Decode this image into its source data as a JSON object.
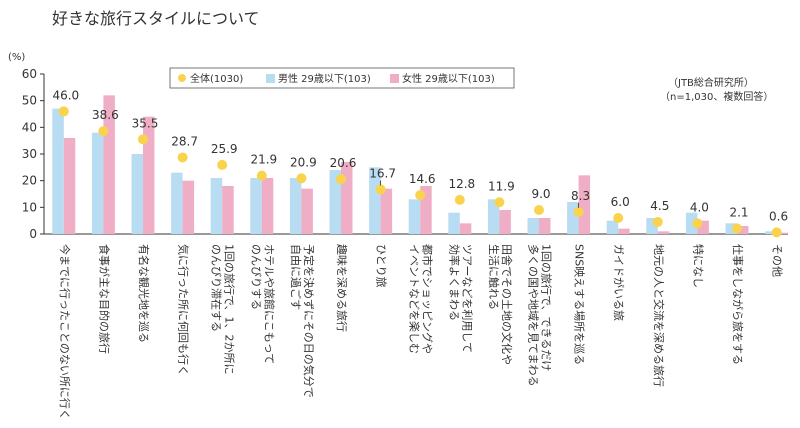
{
  "chart_data": {
    "type": "bar",
    "title": "好きな旅行スタイルについて",
    "unit_label": "(%)",
    "source_line1": "（JTB総合研究所）",
    "source_line2": "（n=1,030、複数回答）",
    "ylim": [
      0,
      60
    ],
    "yticks": [
      0,
      10,
      20,
      30,
      40,
      50,
      60
    ],
    "grid": false,
    "legend_position": "top-right",
    "categories": [
      "今までに行ったことのない所に行く",
      "食事が主な目的の旅行",
      "有名な観光地を巡る",
      "気に行った所に何回も行く",
      "1回の旅行で、1、2か所にのんびり滞在する",
      "ホテルや旅館にこもってのんびりする",
      "予定を決めずにその日の気分で自由に過ごす",
      "趣味を深める旅行",
      "ひとり旅",
      "都市でショッピングやイベントなどを楽しむ",
      "ツアーなどを利用して効率よくまわる",
      "田舎でその土地の文化や生活に触れる",
      "1回の旅行で、できるだけ多くの国や地域を見てまわる",
      "SNS映えする場所を巡る",
      "ガイドがいる旅",
      "地元の人と交流を深める旅行",
      "特になし",
      "仕事をしながら旅をする",
      "その他"
    ],
    "category_lines": [
      [
        "今までに行ったことのない所に行く"
      ],
      [
        "食事が主な目的の旅行"
      ],
      [
        "有名な観光地を巡る"
      ],
      [
        "気に行った所に何回も行く"
      ],
      [
        "1回の旅行で、1、2か所に",
        "のんびり滞在する"
      ],
      [
        "ホテルや旅館にこもって",
        "のんびりする"
      ],
      [
        "予定を決めずにその日の気分で",
        "自由に過ごす"
      ],
      [
        "趣味を深める旅行"
      ],
      [
        "ひとり旅"
      ],
      [
        "都市でショッピングや",
        "イベントなどを楽しむ"
      ],
      [
        "ツアーなどを利用して",
        "効率よくまわる"
      ],
      [
        "田舎でその土地の文化や",
        "生活に触れる"
      ],
      [
        "1回の旅行で、できるだけ",
        "多くの国や地域を見てまわる"
      ],
      [
        "SNS映えする場所を巡る"
      ],
      [
        "ガイドがいる旅"
      ],
      [
        "地元の人と交流を深める旅行"
      ],
      [
        "特になし"
      ],
      [
        "仕事をしながら旅をする"
      ],
      [
        "その他"
      ]
    ],
    "series": [
      {
        "name": "全体(1030)",
        "kind": "dot",
        "color": "#f9d34c",
        "values": [
          46.0,
          38.6,
          35.5,
          28.7,
          25.9,
          21.9,
          20.9,
          20.6,
          16.7,
          14.6,
          12.8,
          11.9,
          9.0,
          8.3,
          6.0,
          4.5,
          4.0,
          2.1,
          0.6
        ]
      },
      {
        "name": "男性 29歳以下(103)",
        "kind": "bar",
        "color": "#b8dcf2",
        "values": [
          47,
          38,
          30,
          23,
          21,
          21,
          21,
          24,
          25,
          13,
          8,
          13,
          6,
          12,
          5,
          6,
          8,
          4,
          1
        ]
      },
      {
        "name": "女性 29歳以下(103)",
        "kind": "bar",
        "color": "#f0aec6",
        "values": [
          36,
          52,
          44,
          20,
          18,
          21,
          17,
          27,
          17,
          18,
          4,
          9,
          6,
          22,
          2,
          1,
          5,
          3,
          0.5
        ]
      }
    ]
  }
}
